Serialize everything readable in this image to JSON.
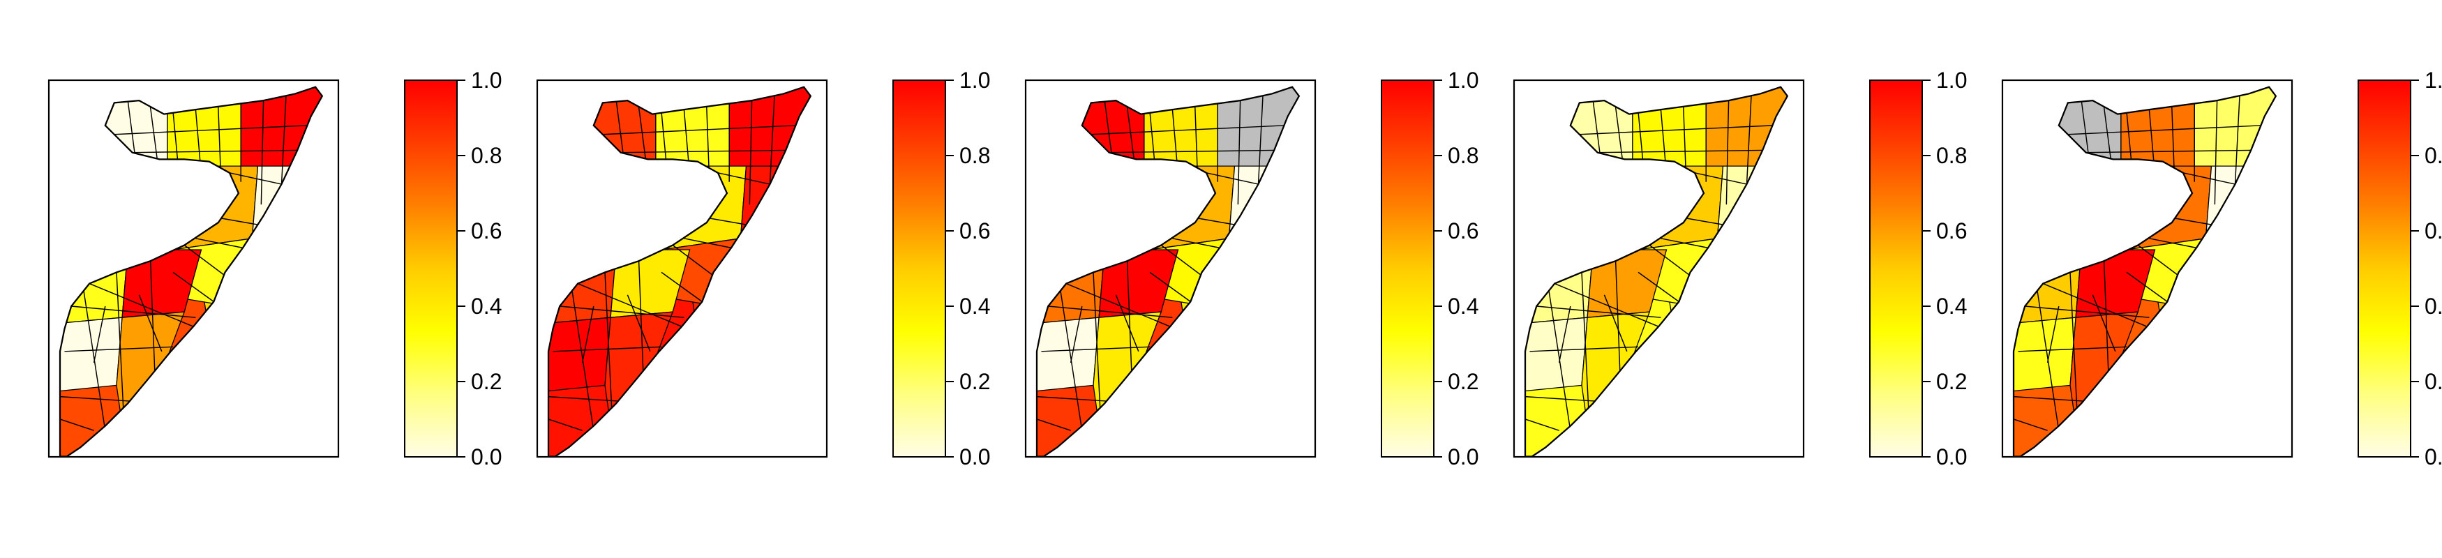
{
  "figure": {
    "panel_count": 5,
    "map_region": "Somalia districts",
    "missing_value_color": "#bebebe",
    "district_outline_color": "#000000"
  },
  "colorbar": {
    "gradient_stops": [
      "#fffde6",
      "#ffff80",
      "#ffff00",
      "#ffcc00",
      "#ff8000",
      "#ff3d00",
      "#ff0000"
    ],
    "ticks": [
      "0.0",
      "0.2",
      "0.4",
      "0.6",
      "0.8",
      "1.0"
    ],
    "tick_values": [
      0.0,
      0.2,
      0.4,
      0.6,
      0.8,
      1.0
    ],
    "range": [
      0.0,
      1.0
    ]
  },
  "panels": [
    {
      "id": "panel-1",
      "north_value": null,
      "north_secondary": [
        0.0,
        0.35,
        1.0
      ],
      "central_value": 0.45,
      "central_secondary": [
        0.55,
        0.0,
        0.3
      ],
      "south_value": 0.8,
      "south_secondary": [
        0.3,
        1.0,
        0.0,
        0.6
      ]
    },
    {
      "id": "panel-2",
      "north_value": 0.95,
      "north_secondary": [
        0.85,
        0.3,
        1.0
      ],
      "central_value": 0.9,
      "central_secondary": [
        0.4,
        0.95,
        0.8
      ],
      "south_value": 0.95,
      "south_secondary": [
        0.85,
        0.4,
        1.0,
        0.9
      ]
    },
    {
      "id": "panel-3",
      "north_value": null,
      "north_secondary": [
        1.0,
        0.4,
        null
      ],
      "central_value": 0.4,
      "central_secondary": [
        0.55,
        0.0,
        0.35
      ],
      "south_value": 0.85,
      "south_secondary": [
        0.7,
        1.0,
        0.0,
        0.4
      ]
    },
    {
      "id": "panel-4",
      "north_value": null,
      "north_secondary": [
        0.1,
        0.35,
        0.6
      ],
      "central_value": 0.25,
      "central_secondary": [
        0.5,
        0.1,
        0.3
      ],
      "south_value": 0.3,
      "south_secondary": [
        0.15,
        0.6,
        0.05,
        0.4
      ]
    },
    {
      "id": "panel-5",
      "north_value": null,
      "north_secondary": [
        null,
        0.7,
        0.2
      ],
      "central_value": 0.55,
      "central_secondary": [
        0.7,
        0.0,
        0.3
      ],
      "south_value": 0.75,
      "south_secondary": [
        0.5,
        1.0,
        0.3,
        0.8
      ]
    }
  ]
}
